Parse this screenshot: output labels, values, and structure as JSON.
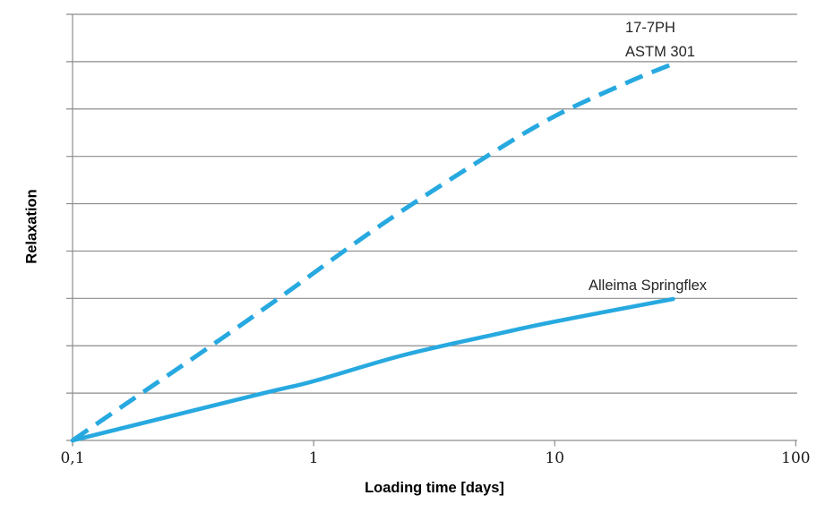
{
  "axes": {
    "x_title": "Loading time [days]",
    "y_title": "Relaxation"
  },
  "annotations": {
    "dashed_series": {
      "line1": "17-7PH",
      "line2": "ASTM 301"
    },
    "solid_series": {
      "label": "Alleima Springflex"
    }
  },
  "colors": {
    "series_blue": "#27A9E0",
    "gridline": "#8C8C8C",
    "tick_text": "#1A1A1A"
  },
  "chart_data": {
    "type": "line",
    "title": "",
    "xlabel": "Loading time [days]",
    "ylabel": "Relaxation",
    "x_scale": "log10",
    "xlim": [
      0.1,
      100
    ],
    "ylim": [
      0,
      100
    ],
    "y_units": "relative (y axis has gridlines but no value labels)",
    "x_ticks": [
      {
        "value": 0.1,
        "label": "0,1"
      },
      {
        "value": 1,
        "label": "1"
      },
      {
        "value": 10,
        "label": "10"
      },
      {
        "value": 100,
        "label": "100"
      }
    ],
    "gridlines": {
      "horizontal": 10,
      "vertical": 0
    },
    "legend_position": "inline annotations near line ends",
    "series": [
      {
        "name": "17-7PH ASTM 301",
        "line_style": "dashed",
        "color": "#27A9E0",
        "points": [
          [
            0.1,
            0
          ],
          [
            0.18,
            9.9
          ],
          [
            0.35,
            21.0
          ],
          [
            0.71,
            33.2
          ],
          [
            1.93,
            50.8
          ],
          [
            5.2,
            66.6
          ],
          [
            10,
            76.1
          ],
          [
            20,
            84.0
          ],
          [
            31,
            88.4
          ]
        ]
      },
      {
        "name": "Alleima Springflex",
        "line_style": "solid",
        "color": "#27A9E0",
        "points": [
          [
            0.1,
            0
          ],
          [
            0.6,
            10.9
          ],
          [
            1,
            13.9
          ],
          [
            2.35,
            20.0
          ],
          [
            6,
            25.2
          ],
          [
            10,
            27.9
          ],
          [
            31,
            33.2
          ]
        ]
      }
    ]
  }
}
